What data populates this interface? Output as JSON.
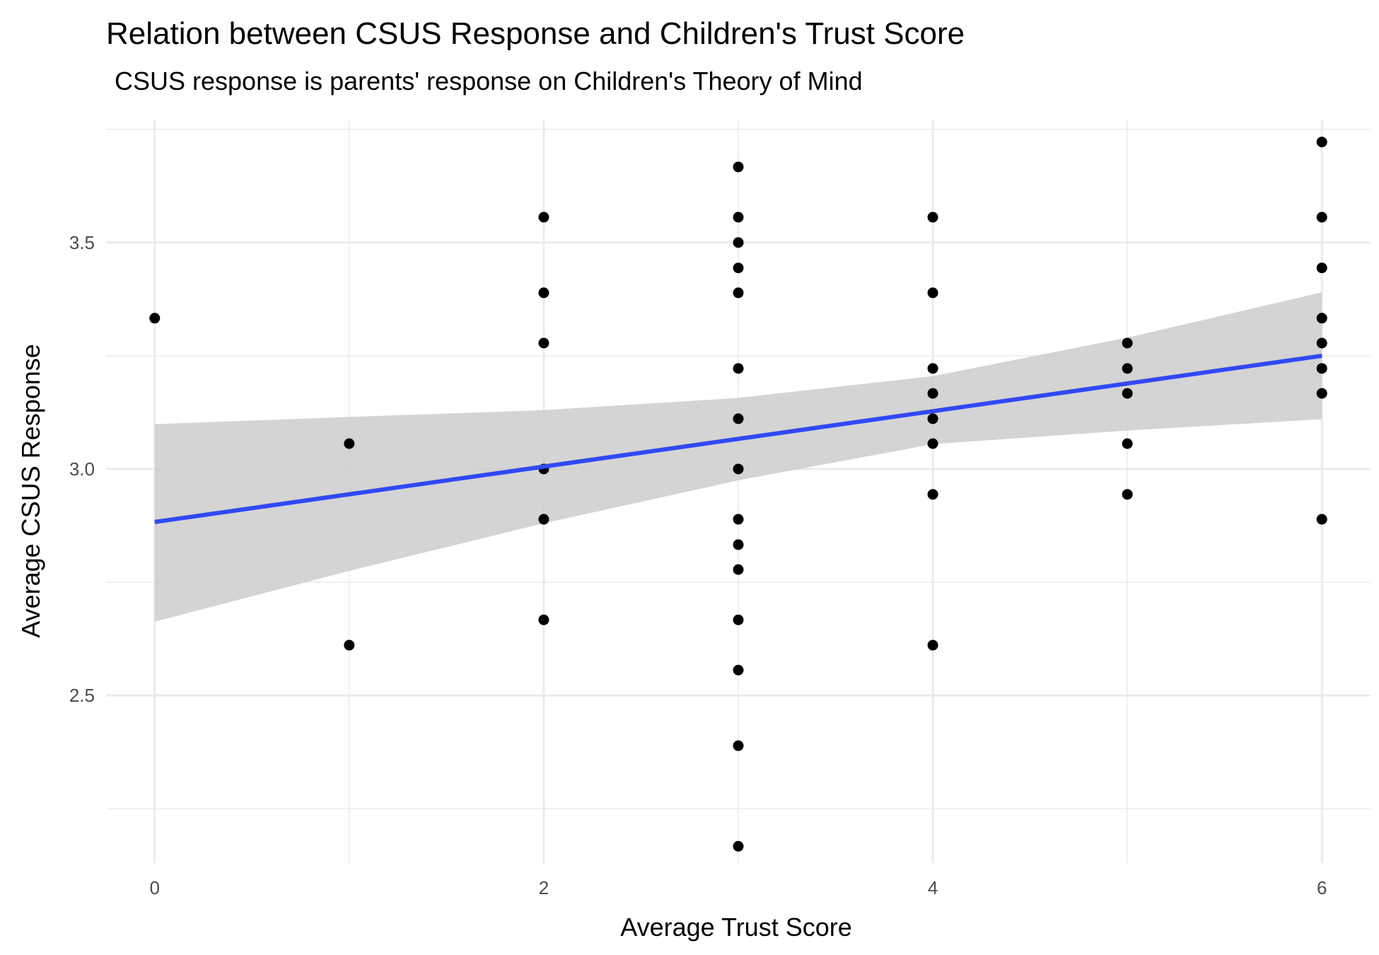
{
  "chart_data": {
    "type": "scatter",
    "title": "Relation between CSUS Response and Children's Trust Score",
    "subtitle": "CSUS response is parents' response on Children's Theory of Mind",
    "xlabel": "Average Trust Score",
    "ylabel": "Average CSUS Response",
    "xlim": [
      -0.25,
      6.25
    ],
    "ylim": [
      2.13,
      3.77
    ],
    "x_ticks": [
      0,
      2,
      4,
      6
    ],
    "x_tick_labels": [
      "0",
      "2",
      "4",
      "6"
    ],
    "y_ticks": [
      2.5,
      3.0,
      3.5
    ],
    "y_tick_labels": [
      "2.5",
      "3.0",
      "3.5"
    ],
    "x_minor_ticks": [
      1,
      3,
      5
    ],
    "y_minor_ticks": [
      2.25,
      2.75,
      3.25,
      3.75
    ],
    "grid": true,
    "points": [
      [
        0,
        3.333
      ],
      [
        1,
        3.056
      ],
      [
        1,
        2.611
      ],
      [
        2,
        3.556
      ],
      [
        2,
        3.389
      ],
      [
        2,
        3.278
      ],
      [
        2,
        3.0
      ],
      [
        2,
        2.889
      ],
      [
        2,
        2.667
      ],
      [
        3,
        3.667
      ],
      [
        3,
        3.556
      ],
      [
        3,
        3.5
      ],
      [
        3,
        3.444
      ],
      [
        3,
        3.389
      ],
      [
        3,
        3.222
      ],
      [
        3,
        3.111
      ],
      [
        3,
        3.0
      ],
      [
        3,
        2.889
      ],
      [
        3,
        2.833
      ],
      [
        3,
        2.778
      ],
      [
        3,
        2.667
      ],
      [
        3,
        2.556
      ],
      [
        3,
        2.389
      ],
      [
        3,
        2.167
      ],
      [
        4,
        3.556
      ],
      [
        4,
        3.389
      ],
      [
        4,
        3.222
      ],
      [
        4,
        3.167
      ],
      [
        4,
        3.111
      ],
      [
        4,
        3.056
      ],
      [
        4,
        2.944
      ],
      [
        4,
        2.611
      ],
      [
        5,
        3.278
      ],
      [
        5,
        3.222
      ],
      [
        5,
        3.167
      ],
      [
        5,
        3.056
      ],
      [
        5,
        2.944
      ],
      [
        6,
        3.722
      ],
      [
        6,
        3.556
      ],
      [
        6,
        3.444
      ],
      [
        6,
        3.333
      ],
      [
        6,
        3.278
      ],
      [
        6,
        3.222
      ],
      [
        6,
        3.167
      ],
      [
        6,
        2.889
      ]
    ],
    "regression": {
      "method": "linear",
      "color": "#3149f5",
      "fit": {
        "x": [
          0,
          6
        ],
        "y": [
          2.883,
          3.25
        ]
      },
      "confidence_band": {
        "color": "#cccccc",
        "x": [
          0,
          1,
          2,
          3,
          4,
          5,
          6
        ],
        "lower": [
          2.663,
          2.775,
          2.88,
          2.975,
          3.055,
          3.085,
          3.11
        ],
        "upper": [
          3.099,
          3.115,
          3.13,
          3.157,
          3.205,
          3.29,
          3.39
        ]
      }
    },
    "colors": {
      "point": "#000000",
      "grid": "#ebebeb",
      "background": "#ffffff"
    }
  }
}
